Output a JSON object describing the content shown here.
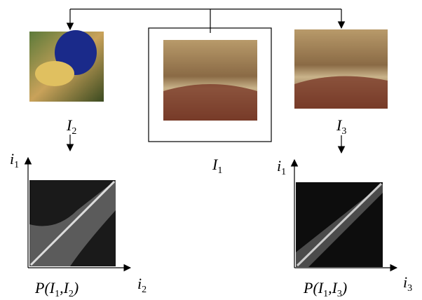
{
  "labels": {
    "image_left": {
      "text": "I",
      "sub": "2"
    },
    "image_right": {
      "text": "I",
      "sub": "3"
    },
    "image_center": {
      "text": "I",
      "sub": "1"
    },
    "left_y_axis": {
      "text": "i",
      "sub": "1"
    },
    "left_x_axis": {
      "text": "i",
      "sub": "2"
    },
    "right_y_axis": {
      "text": "i",
      "sub": "1"
    },
    "right_x_axis": {
      "text": "i",
      "sub": "3"
    },
    "left_plot": {
      "parts": [
        "P(I",
        "1",
        ",I",
        "2",
        ")"
      ]
    },
    "right_plot": {
      "parts": [
        "P(I",
        "1",
        ",I",
        "3",
        ")"
      ]
    }
  }
}
